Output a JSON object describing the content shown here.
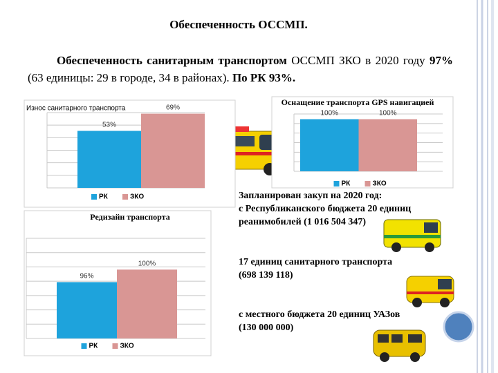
{
  "header": {
    "title": "Обеспеченность ОССМП."
  },
  "paragraph": [
    "Обеспеченность санитарным транспортом",
    " ОССМП ЗКО в 2020 году ",
    "97%",
    " (63 единицы: 29 в городе, 34 в районах). ",
    "По РК 93%."
  ],
  "plan": [
    "Запланирован закуп на 2020 год:",
    "с Республиканского бюджета 20 единиц",
    "реанимобилей (1 016 504 347)",
    "17 единиц  санитарного транспорта",
    "(698 139 118)",
    "с местного  бюджета 20 единиц УАЗов",
    "(130 000 000)"
  ],
  "chart_data": [
    {
      "type": "bar",
      "title": "Износ санитарного транспорта",
      "categories": [
        "РК",
        "ЗКО"
      ],
      "values": [
        53,
        69
      ],
      "value_labels": [
        "53%",
        "69%"
      ],
      "colors": [
        "#1ea3dc",
        "#d99694"
      ],
      "ylim": [
        0,
        70
      ]
    },
    {
      "type": "bar",
      "title": "Оснащение транспорта GPS навигацией",
      "categories": [
        "РК",
        "ЗКО"
      ],
      "values": [
        100,
        100
      ],
      "value_labels": [
        "100%",
        "100%"
      ],
      "colors": [
        "#1ea3dc",
        "#d99694"
      ],
      "ylim": [
        0,
        110
      ]
    },
    {
      "type": "bar",
      "title": "Редизайн транспорта",
      "categories": [
        "РК",
        "ЗКО"
      ],
      "values": [
        96,
        100
      ],
      "value_labels": [
        "96%",
        "100%"
      ],
      "colors": [
        "#1ea3dc",
        "#d99694"
      ],
      "ylim": [
        78,
        110
      ]
    }
  ]
}
